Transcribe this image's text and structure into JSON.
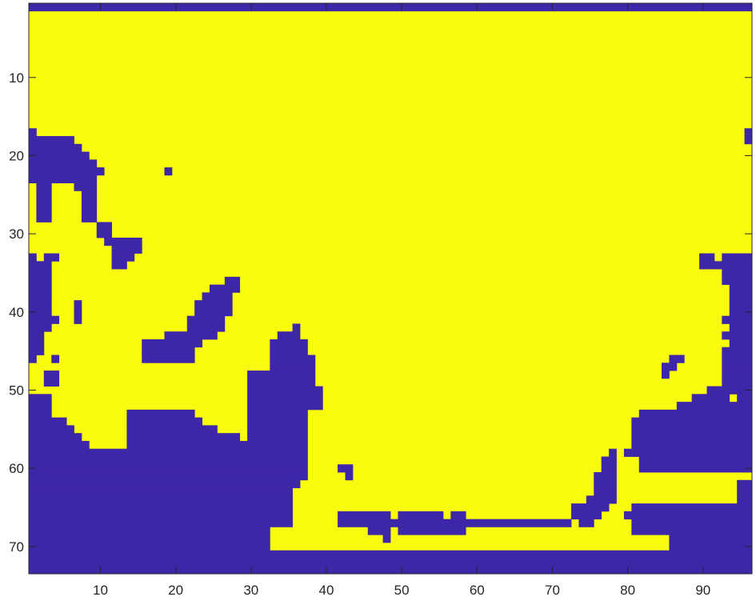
{
  "chart_data": {
    "type": "heatmap",
    "title": "",
    "xlabel": "",
    "ylabel": "",
    "grid": false,
    "y_direction": "reverse",
    "xlim": [
      0.5,
      96.5
    ],
    "ylim": [
      0.5,
      73.5
    ],
    "xticks": [
      10,
      20,
      30,
      40,
      50,
      60,
      70,
      80,
      90
    ],
    "yticks": [
      10,
      20,
      30,
      40,
      50,
      60,
      70
    ],
    "colors": {
      "zero": "#3d26a8",
      "one": "#f9fb0e"
    },
    "rows": [
      {
        "row": 1,
        "zero_runs": [
          [
            1,
            96
          ]
        ]
      },
      {
        "row": 2,
        "zero_runs": []
      },
      {
        "row": 17,
        "zero_runs": [
          [
            1,
            1
          ],
          [
            96,
            96
          ]
        ]
      },
      {
        "row": 18,
        "zero_runs": [
          [
            1,
            6
          ],
          [
            96,
            96
          ]
        ]
      },
      {
        "row": 19,
        "zero_runs": [
          [
            1,
            7
          ]
        ]
      },
      {
        "row": 20,
        "zero_runs": [
          [
            1,
            8
          ]
        ]
      },
      {
        "row": 21,
        "zero_runs": [
          [
            1,
            9
          ]
        ]
      },
      {
        "row": 22,
        "zero_runs": [
          [
            1,
            10
          ],
          [
            19,
            19
          ]
        ]
      },
      {
        "row": 23,
        "zero_runs": [
          [
            1,
            9
          ]
        ]
      },
      {
        "row": 24,
        "zero_runs": [
          [
            2,
            3
          ],
          [
            7,
            9
          ]
        ]
      },
      {
        "row": 25,
        "zero_runs": [
          [
            2,
            3
          ],
          [
            8,
            9
          ]
        ]
      },
      {
        "row": 29,
        "zero_runs": [
          [
            10,
            11
          ]
        ]
      },
      {
        "row": 30,
        "zero_runs": [
          [
            10,
            11
          ]
        ]
      },
      {
        "row": 31,
        "zero_runs": [
          [
            11,
            15
          ]
        ]
      },
      {
        "row": 32,
        "zero_runs": [
          [
            12,
            15
          ]
        ]
      },
      {
        "row": 33,
        "zero_runs": [
          [
            1,
            1
          ],
          [
            3,
            4
          ],
          [
            12,
            14
          ],
          [
            90,
            91
          ],
          [
            93,
            96
          ]
        ]
      },
      {
        "row": 34,
        "zero_runs": [
          [
            1,
            3
          ],
          [
            12,
            13
          ],
          [
            90,
            96
          ]
        ]
      },
      {
        "row": 35,
        "zero_runs": [
          [
            1,
            3
          ],
          [
            93,
            96
          ]
        ]
      },
      {
        "row": 36,
        "zero_runs": [
          [
            1,
            3
          ],
          [
            27,
            28
          ],
          [
            93,
            96
          ]
        ]
      },
      {
        "row": 37,
        "zero_runs": [
          [
            1,
            3
          ],
          [
            25,
            28
          ],
          [
            94,
            96
          ]
        ]
      },
      {
        "row": 38,
        "zero_runs": [
          [
            1,
            3
          ],
          [
            24,
            27
          ],
          [
            94,
            96
          ]
        ]
      },
      {
        "row": 39,
        "zero_runs": [
          [
            1,
            3
          ],
          [
            7,
            7
          ],
          [
            23,
            27
          ],
          [
            94,
            96
          ]
        ]
      },
      {
        "row": 40,
        "zero_runs": [
          [
            1,
            3
          ],
          [
            7,
            7
          ],
          [
            23,
            27
          ],
          [
            94,
            96
          ]
        ]
      },
      {
        "row": 41,
        "zero_runs": [
          [
            1,
            4
          ],
          [
            7,
            7
          ],
          [
            22,
            26
          ],
          [
            93,
            96
          ]
        ]
      },
      {
        "row": 42,
        "zero_runs": [
          [
            1,
            3
          ],
          [
            22,
            26
          ],
          [
            36,
            36
          ],
          [
            94,
            96
          ]
        ]
      },
      {
        "row": 43,
        "zero_runs": [
          [
            1,
            2
          ],
          [
            19,
            25
          ],
          [
            34,
            36
          ],
          [
            93,
            96
          ]
        ]
      },
      {
        "row": 44,
        "zero_runs": [
          [
            1,
            2
          ],
          [
            16,
            23
          ],
          [
            33,
            37
          ],
          [
            94,
            96
          ]
        ]
      },
      {
        "row": 45,
        "zero_runs": [
          [
            1,
            2
          ],
          [
            16,
            22
          ],
          [
            33,
            37
          ],
          [
            93,
            96
          ]
        ]
      },
      {
        "row": 46,
        "zero_runs": [
          [
            1,
            1
          ],
          [
            4,
            4
          ],
          [
            16,
            22
          ],
          [
            33,
            38
          ],
          [
            86,
            87
          ],
          [
            93,
            96
          ]
        ]
      },
      {
        "row": 47,
        "zero_runs": [
          [
            33,
            38
          ],
          [
            85,
            86
          ],
          [
            93,
            96
          ]
        ]
      },
      {
        "row": 48,
        "zero_runs": [
          [
            3,
            4
          ],
          [
            30,
            38
          ],
          [
            85,
            85
          ],
          [
            93,
            96
          ]
        ]
      },
      {
        "row": 49,
        "zero_runs": [
          [
            3,
            4
          ],
          [
            30,
            38
          ],
          [
            93,
            96
          ]
        ]
      },
      {
        "row": 50,
        "zero_runs": [
          [
            30,
            39
          ],
          [
            91,
            96
          ]
        ]
      },
      {
        "row": 51,
        "zero_runs": [
          [
            1,
            3
          ],
          [
            30,
            39
          ],
          [
            89,
            93
          ],
          [
            95,
            96
          ]
        ]
      },
      {
        "row": 52,
        "zero_runs": [
          [
            1,
            3
          ],
          [
            30,
            39
          ],
          [
            87,
            96
          ]
        ]
      },
      {
        "row": 53,
        "zero_runs": [
          [
            1,
            3
          ],
          [
            14,
            22
          ],
          [
            30,
            37
          ],
          [
            82,
            96
          ]
        ]
      },
      {
        "row": 54,
        "zero_runs": [
          [
            1,
            5
          ],
          [
            14,
            23
          ],
          [
            30,
            37
          ],
          [
            81,
            96
          ]
        ]
      },
      {
        "row": 55,
        "zero_runs": [
          [
            1,
            6
          ],
          [
            14,
            25
          ],
          [
            30,
            37
          ],
          [
            81,
            96
          ]
        ]
      },
      {
        "row": 56,
        "zero_runs": [
          [
            1,
            7
          ],
          [
            14,
            28
          ],
          [
            30,
            37
          ],
          [
            81,
            96
          ]
        ]
      },
      {
        "row": 57,
        "zero_runs": [
          [
            1,
            8
          ],
          [
            14,
            37
          ],
          [
            81,
            96
          ]
        ]
      },
      {
        "row": 58,
        "zero_runs": [
          [
            1,
            37
          ],
          [
            78,
            78
          ],
          [
            80,
            96
          ]
        ]
      },
      {
        "row": 59,
        "zero_runs": [
          [
            1,
            37
          ],
          [
            77,
            78
          ],
          [
            82,
            96
          ]
        ]
      },
      {
        "row": 60,
        "zero_runs": [
          [
            1,
            37
          ],
          [
            42,
            43
          ],
          [
            77,
            78
          ],
          [
            82,
            96
          ]
        ]
      },
      {
        "row": 61,
        "zero_runs": [
          [
            1,
            37
          ],
          [
            43,
            43
          ],
          [
            76,
            78
          ]
        ]
      },
      {
        "row": 62,
        "zero_runs": [
          [
            1,
            36
          ],
          [
            76,
            78
          ],
          [
            95,
            96
          ]
        ]
      },
      {
        "row": 63,
        "zero_runs": [
          [
            1,
            35
          ],
          [
            76,
            78
          ],
          [
            95,
            96
          ]
        ]
      },
      {
        "row": 64,
        "zero_runs": [
          [
            1,
            35
          ],
          [
            75,
            78
          ],
          [
            95,
            96
          ]
        ]
      },
      {
        "row": 65,
        "zero_runs": [
          [
            1,
            35
          ],
          [
            73,
            77
          ],
          [
            81,
            96
          ]
        ]
      },
      {
        "row": 66,
        "zero_runs": [
          [
            1,
            35
          ],
          [
            42,
            48
          ],
          [
            50,
            55
          ],
          [
            57,
            58
          ],
          [
            73,
            76
          ],
          [
            80,
            96
          ]
        ]
      },
      {
        "row": 67,
        "zero_runs": [
          [
            1,
            35
          ],
          [
            42,
            49
          ],
          [
            50,
            72
          ],
          [
            74,
            75
          ],
          [
            81,
            96
          ]
        ]
      },
      {
        "row": 68,
        "zero_runs": [
          [
            1,
            32
          ],
          [
            46,
            48
          ],
          [
            50,
            58
          ],
          [
            81,
            96
          ]
        ]
      },
      {
        "row": 69,
        "zero_runs": [
          [
            1,
            32
          ],
          [
            48,
            48
          ],
          [
            86,
            96
          ]
        ]
      },
      {
        "row": 70,
        "zero_runs": [
          [
            1,
            32
          ],
          [
            86,
            96
          ]
        ]
      },
      {
        "row": 71,
        "zero_runs": [
          [
            1,
            96
          ]
        ]
      }
    ]
  }
}
